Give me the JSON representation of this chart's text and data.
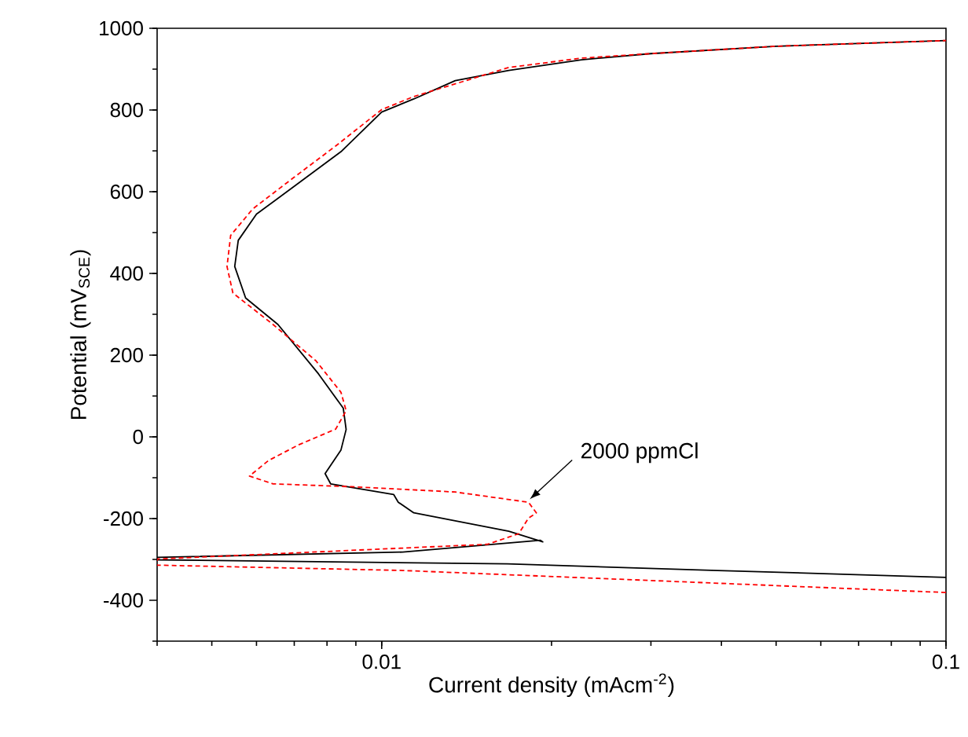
{
  "chart_data": {
    "type": "line",
    "xlabel": "Current density (mAcm$^{-2}$)",
    "ylabel": "Potential (mV$_{SCE}$)",
    "log": "x",
    "xlim": [
      0.004,
      0.1
    ],
    "xticks": [
      0.01,
      0.1
    ],
    "ylim": [
      -500,
      1000
    ],
    "yticks": [
      -400,
      -200,
      0,
      200,
      400,
      600,
      800,
      1000
    ],
    "annotations": [
      {
        "text": "2000 ppmCl",
        "x": 0.0183,
        "y": -153
      }
    ],
    "series": [
      {
        "color": "#000000",
        "line_style": "solid",
        "x": [
          0.1,
          0.0394,
          0.0167,
          0.004,
          0.004,
          0.0109,
          0.0191,
          0.0193,
          0.0168,
          0.0114,
          0.0107,
          0.0105,
          0.00812,
          0.00794,
          0.00847,
          0.00865,
          0.00855,
          0.00773,
          0.00655,
          0.00574,
          0.00549,
          0.00557,
          0.006,
          0.00714,
          0.00847,
          0.01,
          0.0114,
          0.0135,
          0.0168,
          0.0226,
          0.03,
          0.05,
          0.1
        ],
        "values": [
          -344,
          -327,
          -311,
          -301,
          -295,
          -282,
          -253,
          -257,
          -231,
          -186,
          -160,
          -141,
          -115,
          -90,
          -32,
          18,
          70,
          154,
          275,
          340,
          417,
          481,
          545,
          622,
          698,
          795,
          827,
          872,
          897,
          923,
          938,
          956,
          970
        ]
      },
      {
        "color": "#ff0000",
        "line_style": "dashed",
        "x": [
          0.1,
          0.0318,
          0.0109,
          0.004,
          0.004,
          0.0154,
          0.0175,
          0.0182,
          0.0188,
          0.0182,
          0.0135,
          0.00883,
          0.00642,
          0.00583,
          0.0063,
          0.00714,
          0.00829,
          0.00865,
          0.00847,
          0.00765,
          0.00642,
          0.00545,
          0.00532,
          0.0054,
          0.00591,
          0.00699,
          0.00829,
          0.01,
          0.0114,
          0.0168,
          0.0226,
          0.03,
          0.05,
          0.1
        ],
        "values": [
          -381,
          -353,
          -327,
          -314,
          -299,
          -263,
          -237,
          -199,
          -186,
          -160,
          -135,
          -122,
          -115,
          -96,
          -58,
          -19,
          19,
          64,
          109,
          186,
          275,
          352,
          417,
          493,
          558,
          635,
          712,
          801,
          833,
          904,
          927,
          938,
          956,
          970
        ]
      }
    ]
  }
}
